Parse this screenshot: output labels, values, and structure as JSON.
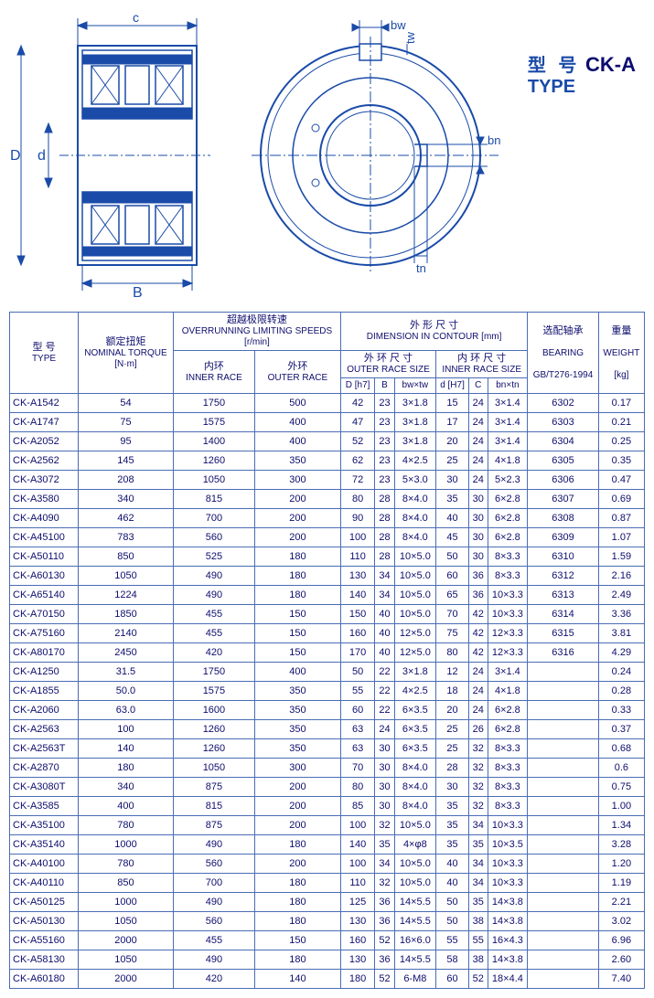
{
  "title": {
    "zh": "型  号",
    "en": "TYPE",
    "model": "CK-A"
  },
  "diagram_labels": {
    "D": "D",
    "d": "d",
    "B": "B",
    "c": "c",
    "bw": "bw",
    "tw": "tw",
    "bn": "bn",
    "tn": "tn"
  },
  "header": {
    "type_zh": "型 号",
    "type_en": "TYPE",
    "torque_zh": "额定扭矩",
    "torque_en": "NOMINAL TORQUE",
    "torque_unit": "[N·m]",
    "speed_zh": "超越极限转速",
    "speed_en": "OVERRUNNING LIMITING SPEEDS",
    "speed_unit": "[r/min]",
    "inner_zh": "内环",
    "inner_en": "INNER RACE",
    "outer_zh": "外环",
    "outer_en": "OUTER RACE",
    "dim_zh": "外  形  尺  寸",
    "dim_en": "DIMENSION  IN  CONTOUR  [mm]",
    "outer_size_zh": "外 环 尺 寸",
    "outer_size_en": "OUTER  RACE  SIZE",
    "inner_size_zh": "内 环 尺 寸",
    "inner_size_en": "INNER  RACE  SIZE",
    "D": "D [h7]",
    "B": "B",
    "bwtw": "bw×tw",
    "d": "d [H7]",
    "C": "C",
    "bntn": "bn×tn",
    "bearing_zh": "选配轴承",
    "bearing_en": "BEARING",
    "bearing_std": "GB/T276-1994",
    "weight_zh": "重量",
    "weight_en": "WEIGHT",
    "weight_unit": "[kg]"
  },
  "rows": [
    [
      "CK-A1542",
      "54",
      "1750",
      "500",
      "42",
      "23",
      "3×1.8",
      "15",
      "24",
      "3×1.4",
      "6302",
      "0.17"
    ],
    [
      "CK-A1747",
      "75",
      "1575",
      "400",
      "47",
      "23",
      "3×1.8",
      "17",
      "24",
      "3×1.4",
      "6303",
      "0.21"
    ],
    [
      "CK-A2052",
      "95",
      "1400",
      "400",
      "52",
      "23",
      "3×1.8",
      "20",
      "24",
      "3×1.4",
      "6304",
      "0.25"
    ],
    [
      "CK-A2562",
      "145",
      "1260",
      "350",
      "62",
      "23",
      "4×2.5",
      "25",
      "24",
      "4×1.8",
      "6305",
      "0.35"
    ],
    [
      "CK-A3072",
      "208",
      "1050",
      "300",
      "72",
      "23",
      "5×3.0",
      "30",
      "24",
      "5×2.3",
      "6306",
      "0.47"
    ],
    [
      "CK-A3580",
      "340",
      "815",
      "200",
      "80",
      "28",
      "8×4.0",
      "35",
      "30",
      "6×2.8",
      "6307",
      "0.69"
    ],
    [
      "CK-A4090",
      "462",
      "700",
      "200",
      "90",
      "28",
      "8×4.0",
      "40",
      "30",
      "6×2.8",
      "6308",
      "0.87"
    ],
    [
      "CK-A45100",
      "783",
      "560",
      "200",
      "100",
      "28",
      "8×4.0",
      "45",
      "30",
      "6×2.8",
      "6309",
      "1.07"
    ],
    [
      "CK-A50110",
      "850",
      "525",
      "180",
      "110",
      "28",
      "10×5.0",
      "50",
      "30",
      "8×3.3",
      "6310",
      "1.59"
    ],
    [
      "CK-A60130",
      "1050",
      "490",
      "180",
      "130",
      "34",
      "10×5.0",
      "60",
      "36",
      "8×3.3",
      "6312",
      "2.16"
    ],
    [
      "CK-A65140",
      "1224",
      "490",
      "180",
      "140",
      "34",
      "10×5.0",
      "65",
      "36",
      "10×3.3",
      "6313",
      "2.49"
    ],
    [
      "CK-A70150",
      "1850",
      "455",
      "150",
      "150",
      "40",
      "10×5.0",
      "70",
      "42",
      "10×3.3",
      "6314",
      "3.36"
    ],
    [
      "CK-A75160",
      "2140",
      "455",
      "150",
      "160",
      "40",
      "12×5.0",
      "75",
      "42",
      "12×3.3",
      "6315",
      "3.81"
    ],
    [
      "CK-A80170",
      "2450",
      "420",
      "150",
      "170",
      "40",
      "12×5.0",
      "80",
      "42",
      "12×3.3",
      "6316",
      "4.29"
    ],
    [
      "CK-A1250",
      "31.5",
      "1750",
      "400",
      "50",
      "22",
      "3×1.8",
      "12",
      "24",
      "3×1.4",
      "",
      "0.24"
    ],
    [
      "CK-A1855",
      "50.0",
      "1575",
      "350",
      "55",
      "22",
      "4×2.5",
      "18",
      "24",
      "4×1.8",
      "",
      "0.28"
    ],
    [
      "CK-A2060",
      "63.0",
      "1600",
      "350",
      "60",
      "22",
      "6×3.5",
      "20",
      "24",
      "6×2.8",
      "",
      "0.33"
    ],
    [
      "CK-A2563",
      "100",
      "1260",
      "350",
      "63",
      "24",
      "6×3.5",
      "25",
      "26",
      "6×2.8",
      "",
      "0.37"
    ],
    [
      "CK-A2563T",
      "140",
      "1260",
      "350",
      "63",
      "30",
      "6×3.5",
      "25",
      "32",
      "8×3.3",
      "",
      "0.68"
    ],
    [
      "CK-A2870",
      "180",
      "1050",
      "300",
      "70",
      "30",
      "8×4.0",
      "28",
      "32",
      "8×3.3",
      "",
      "0.6"
    ],
    [
      "CK-A3080T",
      "340",
      "875",
      "200",
      "80",
      "30",
      "8×4.0",
      "30",
      "32",
      "8×3.3",
      "",
      "0.75"
    ],
    [
      "CK-A3585",
      "400",
      "815",
      "200",
      "85",
      "30",
      "8×4.0",
      "35",
      "32",
      "8×3.3",
      "",
      "1.00"
    ],
    [
      "CK-A35100",
      "780",
      "875",
      "200",
      "100",
      "32",
      "10×5.0",
      "35",
      "34",
      "10×3.3",
      "",
      "1.34"
    ],
    [
      "CK-A35140",
      "1000",
      "490",
      "180",
      "140",
      "35",
      "4×φ8",
      "35",
      "35",
      "10×3.5",
      "",
      "3.28"
    ],
    [
      "CK-A40100",
      "780",
      "560",
      "200",
      "100",
      "34",
      "10×5.0",
      "40",
      "34",
      "10×3.3",
      "",
      "1.20"
    ],
    [
      "CK-A40110",
      "850",
      "700",
      "180",
      "110",
      "32",
      "10×5.0",
      "40",
      "34",
      "10×3.3",
      "",
      "1.19"
    ],
    [
      "CK-A50125",
      "1000",
      "490",
      "180",
      "125",
      "36",
      "14×5.5",
      "50",
      "35",
      "14×3.8",
      "",
      "2.21"
    ],
    [
      "CK-A50130",
      "1050",
      "560",
      "180",
      "130",
      "36",
      "14×5.5",
      "50",
      "38",
      "14×3.8",
      "",
      "3.02"
    ],
    [
      "CK-A55160",
      "2000",
      "455",
      "150",
      "160",
      "52",
      "16×6.0",
      "55",
      "55",
      "16×4.3",
      "",
      "6.96"
    ],
    [
      "CK-A58130",
      "1050",
      "490",
      "180",
      "130",
      "36",
      "14×5.5",
      "58",
      "38",
      "14×3.8",
      "",
      "2.60"
    ],
    [
      "CK-A60180",
      "2000",
      "420",
      "140",
      "180",
      "52",
      "6-M8",
      "60",
      "52",
      "18×4.4",
      "",
      "7.40"
    ]
  ],
  "colors": {
    "line": "#1a4ba8",
    "text": "#0d0d6e",
    "border": "#4a6db5"
  }
}
